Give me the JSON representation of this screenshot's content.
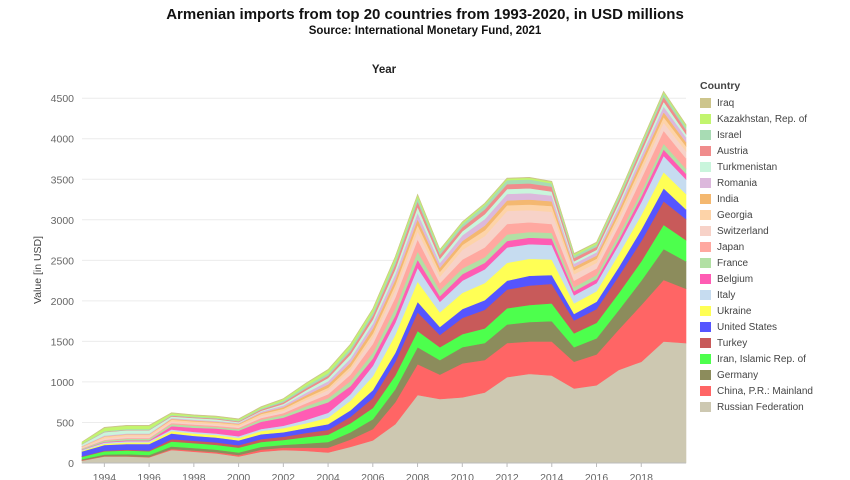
{
  "chart_data": {
    "type": "area",
    "stacked": true,
    "title": "Armenian imports from top 20 countries from 1993-2020, in USD millions",
    "subtitle": "Source: International Monetary Fund, 2021",
    "top_label": "Year",
    "ylabel": "Value [in USD]",
    "ylim": [
      0,
      4700
    ],
    "yticks": [
      0,
      500,
      1000,
      1500,
      2000,
      2500,
      3000,
      3500,
      4000,
      4500
    ],
    "xlim": [
      1993,
      2020
    ],
    "xticks": [
      1994,
      1996,
      1998,
      2000,
      2002,
      2004,
      2006,
      2008,
      2010,
      2012,
      2014,
      2016,
      2018
    ],
    "grid": "horizontal",
    "legend_title": "Country",
    "legend_position": "right",
    "x": [
      1993,
      1994,
      1995,
      1996,
      1997,
      1998,
      1999,
      2000,
      2001,
      2002,
      2003,
      2004,
      2005,
      2006,
      2007,
      2008,
      2009,
      2010,
      2011,
      2012,
      2013,
      2014,
      2015,
      2016,
      2017,
      2018,
      2019,
      2020
    ],
    "series": [
      {
        "name": "Russian Federation",
        "color": "#cdc8b1",
        "values": [
          30,
          80,
          80,
          70,
          160,
          140,
          120,
          80,
          140,
          160,
          150,
          130,
          200,
          280,
          480,
          840,
          790,
          810,
          870,
          1060,
          1100,
          1080,
          920,
          960,
          1150,
          1250,
          1500,
          1480
        ]
      },
      {
        "name": "China, P.R.: Mainland",
        "color": "#ff6565",
        "values": [
          3,
          5,
          5,
          5,
          15,
          15,
          15,
          20,
          25,
          30,
          40,
          60,
          90,
          140,
          270,
          380,
          300,
          420,
          400,
          420,
          400,
          420,
          330,
          380,
          500,
          700,
          760,
          670
        ]
      },
      {
        "name": "Germany",
        "color": "#8c8c5c",
        "values": [
          15,
          20,
          25,
          25,
          30,
          30,
          30,
          30,
          35,
          35,
          50,
          70,
          90,
          120,
          160,
          210,
          180,
          200,
          210,
          230,
          240,
          250,
          180,
          200,
          240,
          300,
          380,
          340
        ]
      },
      {
        "name": "Iran, Islamic Rep. of",
        "color": "#4dff4d",
        "values": [
          30,
          40,
          45,
          45,
          60,
          60,
          60,
          60,
          60,
          60,
          80,
          90,
          110,
          140,
          170,
          200,
          160,
          160,
          180,
          200,
          210,
          220,
          170,
          190,
          210,
          240,
          300,
          260
        ]
      },
      {
        "name": "Turkey",
        "color": "#c85a5a",
        "values": [
          5,
          8,
          10,
          10,
          30,
          30,
          30,
          30,
          35,
          40,
          50,
          60,
          80,
          120,
          170,
          230,
          150,
          200,
          230,
          230,
          240,
          240,
          160,
          170,
          210,
          250,
          290,
          260
        ]
      },
      {
        "name": "United States",
        "color": "#5555ff",
        "values": [
          60,
          70,
          70,
          80,
          70,
          60,
          60,
          60,
          60,
          55,
          60,
          70,
          80,
          100,
          110,
          130,
          100,
          110,
          120,
          110,
          120,
          110,
          80,
          90,
          110,
          140,
          160,
          120
        ]
      },
      {
        "name": "Ukraine",
        "color": "#ffff55",
        "values": [
          10,
          15,
          20,
          20,
          30,
          30,
          30,
          30,
          40,
          50,
          60,
          80,
          120,
          170,
          220,
          250,
          180,
          200,
          210,
          220,
          210,
          190,
          130,
          130,
          160,
          180,
          200,
          190
        ]
      },
      {
        "name": "Italy",
        "color": "#c6dcf0",
        "values": [
          10,
          15,
          15,
          15,
          20,
          20,
          20,
          20,
          25,
          30,
          40,
          60,
          80,
          130,
          150,
          170,
          130,
          150,
          170,
          190,
          180,
          180,
          100,
          100,
          120,
          160,
          200,
          180
        ]
      },
      {
        "name": "Belgium",
        "color": "#ff5cb4",
        "values": [
          5,
          8,
          10,
          10,
          40,
          50,
          60,
          70,
          90,
          100,
          130,
          130,
          100,
          90,
          90,
          100,
          70,
          80,
          80,
          80,
          80,
          80,
          50,
          50,
          60,
          70,
          80,
          70
        ]
      },
      {
        "name": "France",
        "color": "#b2e0a4",
        "values": [
          10,
          15,
          20,
          20,
          25,
          25,
          20,
          20,
          25,
          30,
          40,
          50,
          60,
          70,
          90,
          100,
          70,
          70,
          70,
          80,
          70,
          70,
          50,
          50,
          60,
          60,
          70,
          60
        ]
      },
      {
        "name": "Japan",
        "color": "#ffa8a0",
        "values": [
          5,
          10,
          10,
          10,
          15,
          15,
          15,
          15,
          20,
          25,
          35,
          50,
          80,
          110,
          130,
          150,
          90,
          110,
          120,
          130,
          120,
          110,
          80,
          80,
          110,
          160,
          160,
          130
        ]
      },
      {
        "name": "Switzerland",
        "color": "#f7d2c8",
        "values": [
          10,
          20,
          20,
          20,
          20,
          20,
          20,
          20,
          25,
          30,
          40,
          50,
          60,
          80,
          90,
          100,
          80,
          120,
          140,
          160,
          150,
          150,
          80,
          70,
          80,
          90,
          100,
          90
        ]
      },
      {
        "name": "Georgia",
        "color": "#fdd3a8",
        "values": [
          10,
          20,
          20,
          20,
          20,
          20,
          20,
          20,
          25,
          25,
          30,
          30,
          40,
          50,
          70,
          80,
          60,
          60,
          70,
          70,
          70,
          70,
          50,
          50,
          60,
          70,
          70,
          60
        ]
      },
      {
        "name": "India",
        "color": "#f4b870",
        "values": [
          3,
          5,
          5,
          5,
          10,
          10,
          10,
          10,
          15,
          20,
          30,
          40,
          50,
          60,
          60,
          70,
          50,
          50,
          60,
          60,
          60,
          60,
          40,
          40,
          50,
          60,
          60,
          50
        ]
      },
      {
        "name": "Romania",
        "color": "#dcb8dc",
        "values": [
          5,
          10,
          10,
          10,
          10,
          10,
          10,
          10,
          15,
          20,
          30,
          40,
          50,
          60,
          70,
          80,
          60,
          70,
          80,
          80,
          80,
          70,
          40,
          40,
          50,
          60,
          70,
          60
        ]
      },
      {
        "name": "Turkmenistan",
        "color": "#c9f5dc",
        "values": [
          20,
          40,
          40,
          40,
          20,
          20,
          20,
          10,
          10,
          20,
          30,
          40,
          50,
          50,
          60,
          70,
          50,
          50,
          60,
          60,
          60,
          50,
          30,
          30,
          40,
          50,
          60,
          40
        ]
      },
      {
        "name": "Austria",
        "color": "#f08c8c",
        "values": [
          3,
          5,
          5,
          5,
          10,
          10,
          10,
          10,
          15,
          20,
          25,
          30,
          40,
          50,
          60,
          70,
          50,
          50,
          60,
          60,
          60,
          60,
          40,
          40,
          40,
          50,
          60,
          50
        ]
      },
      {
        "name": "Israel",
        "color": "#a8dcb4",
        "values": [
          5,
          10,
          10,
          10,
          10,
          10,
          10,
          10,
          15,
          20,
          30,
          30,
          40,
          40,
          50,
          50,
          40,
          40,
          50,
          50,
          50,
          40,
          30,
          30,
          40,
          40,
          40,
          40
        ]
      },
      {
        "name": "Kazakhstan, Rep. of",
        "color": "#c2f56e",
        "values": [
          20,
          40,
          40,
          40,
          20,
          15,
          15,
          15,
          15,
          20,
          30,
          40,
          40,
          40,
          40,
          30,
          20,
          20,
          20,
          20,
          20,
          20,
          20,
          20,
          20,
          20,
          20,
          20
        ]
      },
      {
        "name": "Iraq",
        "color": "#cdc58c",
        "values": [
          0,
          5,
          5,
          5,
          5,
          5,
          5,
          5,
          5,
          5,
          5,
          5,
          5,
          5,
          5,
          5,
          5,
          5,
          5,
          5,
          5,
          5,
          5,
          5,
          5,
          5,
          5,
          5
        ]
      }
    ]
  },
  "legend_order": [
    "Iraq",
    "Kazakhstan, Rep. of",
    "Israel",
    "Austria",
    "Turkmenistan",
    "Romania",
    "India",
    "Georgia",
    "Switzerland",
    "Japan",
    "France",
    "Belgium",
    "Italy",
    "Ukraine",
    "United States",
    "Turkey",
    "Iran, Islamic Rep. of",
    "Germany",
    "China, P.R.: Mainland",
    "Russian Federation"
  ]
}
